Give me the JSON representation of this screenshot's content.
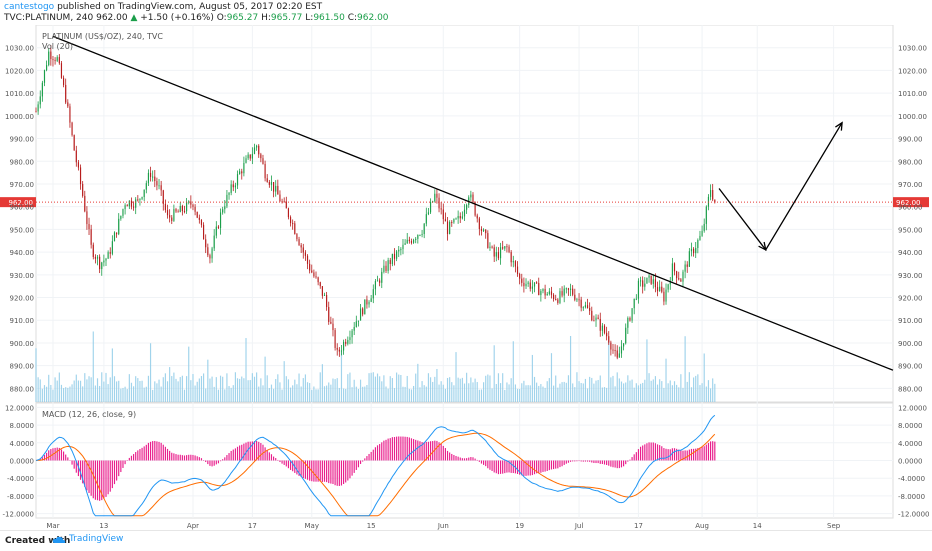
{
  "header": {
    "author": "cantestogo",
    "published_text": "published on TradingView.com, August 05, 2017 02:20 EST",
    "symbol": "TVC:PLATINUM, 240",
    "last": "962.00",
    "change": "+1.50 (+0.16%)",
    "o_label": "O:",
    "o_val": "965.27",
    "h_label": "H:",
    "h_val": "965.77",
    "l_label": "L:",
    "l_val": "961.50",
    "c_label": "C:",
    "c_val": "962.00"
  },
  "footer": {
    "created_with": "Created with",
    "brand": "TradingView"
  },
  "colors": {
    "up": "#1b9e4a",
    "down": "#b71c1c",
    "volume": "#8fcbe8",
    "macd_line": "#2196f3",
    "signal_line": "#ff6d00",
    "histogram": "#e91e8c",
    "price_line": "#e53935",
    "trend": "#000000"
  },
  "chart_data": [
    {
      "type": "candlestick",
      "title": "PLATINUM (US$/OZ), 240, TVC",
      "volume_label": "Vol (20)",
      "price_label": "962.00",
      "ylim": [
        874,
        1040
      ],
      "y_ticks": [
        880,
        890,
        900,
        910,
        920,
        930,
        940,
        950,
        960,
        970,
        980,
        990,
        1000,
        1010,
        1020,
        1030
      ],
      "x_ticks": [
        "Mar",
        "13",
        "Apr",
        "17",
        "May",
        "15",
        "Jun",
        "19",
        "Jul",
        "17",
        "Aug",
        "14",
        "Sep"
      ],
      "x_tick_dates": [
        "2017-03-01",
        "2017-03-13",
        "2017-04-03",
        "2017-04-17",
        "2017-05-01",
        "2017-05-15",
        "2017-06-01",
        "2017-06-19",
        "2017-07-03",
        "2017-07-17",
        "2017-08-01",
        "2017-08-14",
        "2017-09-01"
      ],
      "x_range": [
        "2017-02-25",
        "2017-09-15"
      ],
      "grid": true,
      "close_path": [
        {
          "date": "2017-02-25",
          "close": 1002
        },
        {
          "date": "2017-02-28",
          "close": 1028
        },
        {
          "date": "2017-03-02",
          "close": 1025
        },
        {
          "date": "2017-03-04",
          "close": 1008
        },
        {
          "date": "2017-03-06",
          "close": 985
        },
        {
          "date": "2017-03-08",
          "close": 965
        },
        {
          "date": "2017-03-10",
          "close": 942
        },
        {
          "date": "2017-03-12",
          "close": 935
        },
        {
          "date": "2017-03-14",
          "close": 938
        },
        {
          "date": "2017-03-16",
          "close": 950
        },
        {
          "date": "2017-03-18",
          "close": 962
        },
        {
          "date": "2017-03-21",
          "close": 962
        },
        {
          "date": "2017-03-24",
          "close": 975
        },
        {
          "date": "2017-03-26",
          "close": 968
        },
        {
          "date": "2017-03-28",
          "close": 955
        },
        {
          "date": "2017-03-31",
          "close": 958
        },
        {
          "date": "2017-04-03",
          "close": 962
        },
        {
          "date": "2017-04-07",
          "close": 938
        },
        {
          "date": "2017-04-10",
          "close": 960
        },
        {
          "date": "2017-04-14",
          "close": 975
        },
        {
          "date": "2017-04-18",
          "close": 987
        },
        {
          "date": "2017-04-20",
          "close": 975
        },
        {
          "date": "2017-04-23",
          "close": 965
        },
        {
          "date": "2017-04-26",
          "close": 955
        },
        {
          "date": "2017-04-30",
          "close": 935
        },
        {
          "date": "2017-05-04",
          "close": 920
        },
        {
          "date": "2017-05-07",
          "close": 895
        },
        {
          "date": "2017-05-10",
          "close": 905
        },
        {
          "date": "2017-05-13",
          "close": 915
        },
        {
          "date": "2017-05-16",
          "close": 925
        },
        {
          "date": "2017-05-19",
          "close": 935
        },
        {
          "date": "2017-05-24",
          "close": 945
        },
        {
          "date": "2017-05-27",
          "close": 950
        },
        {
          "date": "2017-05-30",
          "close": 965
        },
        {
          "date": "2017-06-02",
          "close": 950
        },
        {
          "date": "2017-06-05",
          "close": 955
        },
        {
          "date": "2017-06-07",
          "close": 966
        },
        {
          "date": "2017-06-10",
          "close": 950
        },
        {
          "date": "2017-06-13",
          "close": 938
        },
        {
          "date": "2017-06-16",
          "close": 942
        },
        {
          "date": "2017-06-19",
          "close": 928
        },
        {
          "date": "2017-06-22",
          "close": 925
        },
        {
          "date": "2017-06-25",
          "close": 922
        },
        {
          "date": "2017-06-28",
          "close": 920
        },
        {
          "date": "2017-07-01",
          "close": 923
        },
        {
          "date": "2017-07-04",
          "close": 917
        },
        {
          "date": "2017-07-07",
          "close": 910
        },
        {
          "date": "2017-07-10",
          "close": 902
        },
        {
          "date": "2017-07-12",
          "close": 892
        },
        {
          "date": "2017-07-15",
          "close": 912
        },
        {
          "date": "2017-07-17",
          "close": 925
        },
        {
          "date": "2017-07-20",
          "close": 928
        },
        {
          "date": "2017-07-23",
          "close": 920
        },
        {
          "date": "2017-07-25",
          "close": 933
        },
        {
          "date": "2017-07-27",
          "close": 928
        },
        {
          "date": "2017-07-29",
          "close": 938
        },
        {
          "date": "2017-08-01",
          "close": 948
        },
        {
          "date": "2017-08-03",
          "close": 968
        },
        {
          "date": "2017-08-04",
          "close": 962
        }
      ]
    },
    {
      "type": "line",
      "title": "MACD (12, 26, close, 9)",
      "ylim": [
        -13,
        13
      ],
      "y_ticks": [
        -12,
        -8,
        -4,
        0,
        4,
        8,
        12
      ],
      "y_tick_labels": [
        "-12.0000",
        "-8.0000",
        "-4.0000",
        "0.0000",
        "4.0000",
        "8.0000",
        "12.0000"
      ]
    }
  ],
  "drawings": {
    "trendline": [
      {
        "date": "2017-03-01",
        "price": 1035
      },
      {
        "date": "2017-09-15",
        "price": 888
      }
    ],
    "projection": [
      {
        "date": "2017-08-05",
        "price": 968
      },
      {
        "date": "2017-08-16",
        "price": 941
      },
      {
        "date": "2017-09-03",
        "price": 997
      }
    ]
  }
}
